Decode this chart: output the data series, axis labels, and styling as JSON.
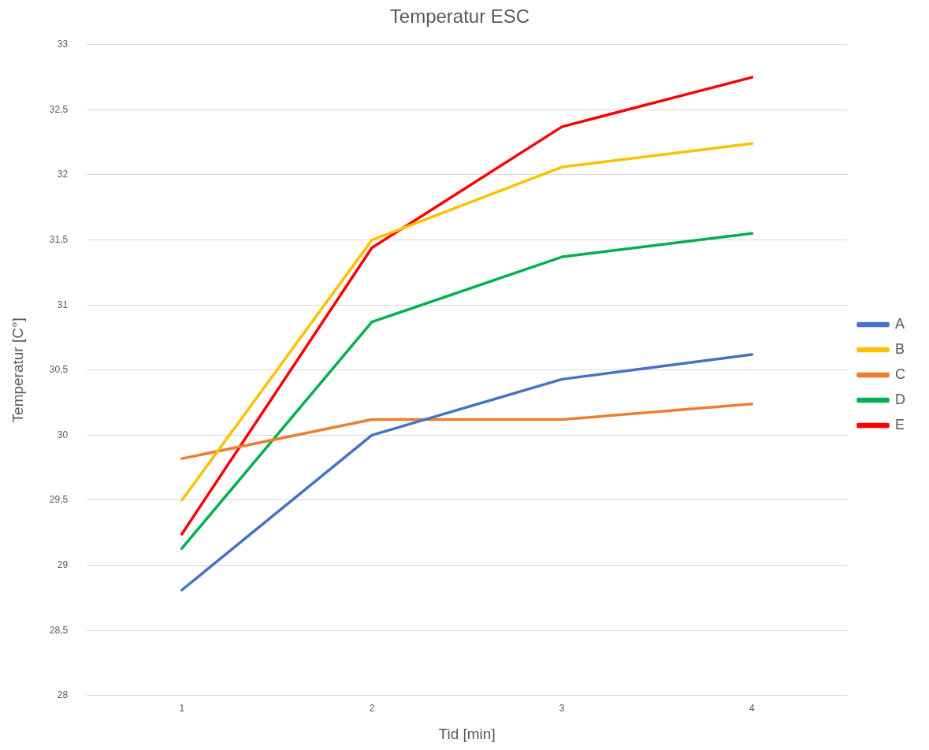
{
  "chart_data": {
    "type": "line",
    "title": "Temperatur ESC",
    "xlabel": "Tid [min]",
    "ylabel": "Temperatur [C°]",
    "categories": [
      "1",
      "2",
      "3",
      "4"
    ],
    "series": [
      {
        "name": "A",
        "color": "#4472c4",
        "values": [
          28.81,
          30.0,
          30.43,
          30.62
        ]
      },
      {
        "name": "B",
        "color": "#ffc000",
        "values": [
          29.5,
          31.5,
          32.06,
          32.24
        ]
      },
      {
        "name": "C",
        "color": "#ed7d31",
        "values": [
          29.82,
          30.12,
          30.12,
          30.24
        ]
      },
      {
        "name": "D",
        "color": "#00b050",
        "values": [
          29.13,
          30.87,
          31.37,
          31.55
        ]
      },
      {
        "name": "E",
        "color": "#ff0000",
        "values": [
          29.24,
          31.44,
          32.37,
          32.75
        ]
      }
    ],
    "ylim": [
      28,
      33
    ],
    "yticks": [
      28,
      {
        "value": 28.5,
        "label": "28,5"
      },
      29,
      {
        "value": 29.5,
        "label": "29,5"
      },
      30,
      {
        "value": 30.5,
        "label": "30,5"
      },
      31,
      {
        "value": 31.5,
        "label": "31,5"
      },
      32,
      {
        "value": 32.5,
        "label": "32,5"
      },
      33
    ],
    "grid": "y",
    "legend": "right"
  }
}
